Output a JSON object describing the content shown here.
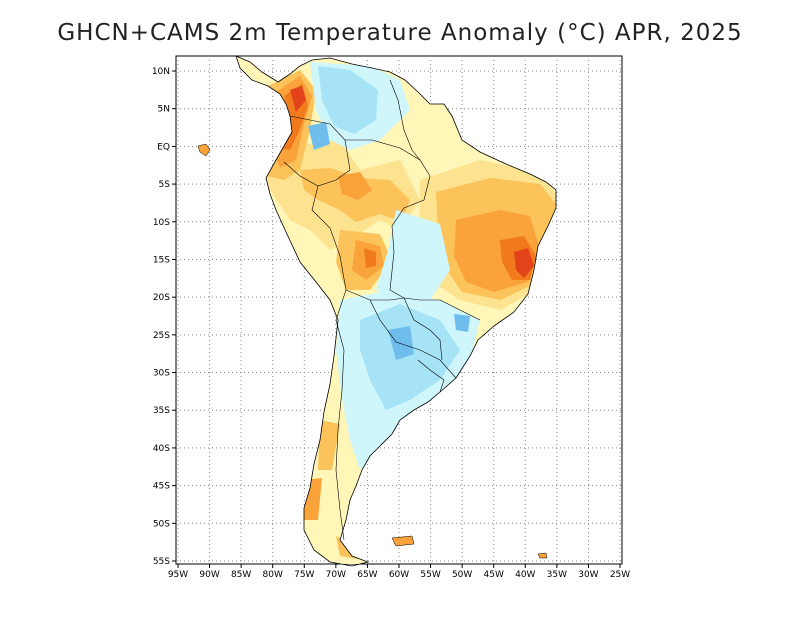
{
  "title": "GHCN+CAMS 2m Temperature Anomaly (°C) APR, 2025",
  "colors": {
    "warm_1": "#fff6b8",
    "warm_2": "#fde28f",
    "warm_3": "#fcc35b",
    "warm_4": "#f9a33a",
    "warm_5": "#f07a1c",
    "warm_6": "#e3431b",
    "cool_1": "#cff6fb",
    "cool_2": "#a6e3f7",
    "cool_3": "#6fbdec",
    "cool_4": "#3d8ad8",
    "coast": "#000000",
    "grid": "#888888"
  },
  "axes": {
    "lat_labels": [
      "10N",
      "5N",
      "EQ",
      "5S",
      "10S",
      "15S",
      "20S",
      "25S",
      "30S",
      "35S",
      "40S",
      "45S",
      "50S",
      "55S"
    ],
    "lon_labels": [
      "95W",
      "90W",
      "85W",
      "80W",
      "75W",
      "70W",
      "65W",
      "60W",
      "55W",
      "50W",
      "45W",
      "40W",
      "35W",
      "30W",
      "25W"
    ]
  }
}
